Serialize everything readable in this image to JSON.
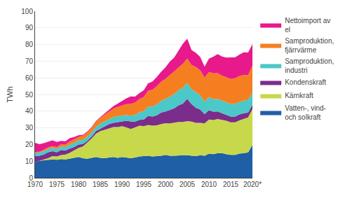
{
  "chart_data": {
    "type": "area",
    "stacked": true,
    "ylabel": "TWh",
    "x": [
      1970,
      1971,
      1972,
      1973,
      1974,
      1975,
      1976,
      1977,
      1978,
      1979,
      1980,
      1981,
      1982,
      1983,
      1984,
      1985,
      1986,
      1987,
      1988,
      1989,
      1990,
      1991,
      1992,
      1993,
      1994,
      1995,
      1996,
      1997,
      1998,
      1999,
      2000,
      2001,
      2002,
      2003,
      2004,
      2005,
      2006,
      2007,
      2008,
      2009,
      2010,
      2011,
      2012,
      2013,
      2014,
      2015,
      2016,
      2017,
      2018,
      2019,
      2020
    ],
    "series": [
      {
        "name": "Vatten-, vind-\noch solkraft",
        "color": "#1f5fa6",
        "values": [
          9.5,
          10.2,
          10.5,
          10.8,
          11.0,
          10.8,
          11.2,
          11.0,
          11.5,
          12.0,
          12.5,
          11.8,
          11.5,
          12.0,
          12.5,
          12.0,
          11.8,
          12.2,
          12.5,
          12.0,
          12.5,
          12.2,
          11.8,
          12.2,
          12.8,
          13.0,
          13.2,
          12.8,
          13.0,
          13.2,
          13.8,
          13.2,
          13.2,
          13.5,
          13.5,
          13.5,
          13.2,
          13.0,
          13.5,
          13.2,
          14.5,
          14.2,
          14.8,
          14.8,
          14.2,
          13.8,
          13.8,
          14.5,
          14.8,
          15.2,
          19.8
        ]
      },
      {
        "name": "Kärnkraft",
        "color": "#c8d84b",
        "values": [
          0.0,
          0.0,
          0.5,
          1.0,
          2.0,
          2.0,
          2.5,
          3.0,
          3.5,
          4.5,
          5.5,
          7.0,
          9.5,
          11.5,
          14.0,
          16.0,
          17.0,
          17.5,
          18.0,
          18.5,
          18.5,
          18.0,
          17.5,
          18.0,
          18.5,
          18.0,
          18.5,
          18.5,
          18.5,
          19.0,
          19.0,
          19.5,
          20.0,
          20.0,
          20.0,
          20.5,
          20.5,
          20.0,
          19.5,
          19.5,
          20.5,
          20.5,
          20.5,
          20.0,
          20.0,
          19.5,
          19.5,
          20.0,
          20.5,
          21.0,
          21.5
        ]
      },
      {
        "name": "Kondenskraft",
        "color": "#7b2d8b",
        "values": [
          3.5,
          3.0,
          3.0,
          3.5,
          3.0,
          2.5,
          3.0,
          2.5,
          2.5,
          2.0,
          2.0,
          1.5,
          1.2,
          1.2,
          1.5,
          1.5,
          2.0,
          2.5,
          2.5,
          3.0,
          3.0,
          4.0,
          4.5,
          3.5,
          3.5,
          4.0,
          5.5,
          5.5,
          6.0,
          7.0,
          7.0,
          8.0,
          8.5,
          10.0,
          11.0,
          13.5,
          10.5,
          9.0,
          8.0,
          5.5,
          5.5,
          5.0,
          4.5,
          4.0,
          3.5,
          3.5,
          3.5,
          3.5,
          3.5,
          3.0,
          2.5
        ]
      },
      {
        "name": "Samproduktion,\nindustri",
        "color": "#4bc8c8",
        "values": [
          2.0,
          2.0,
          2.0,
          2.0,
          2.0,
          2.0,
          2.0,
          2.0,
          2.5,
          2.5,
          2.5,
          2.5,
          2.5,
          2.5,
          2.5,
          3.0,
          3.0,
          3.0,
          3.5,
          3.5,
          3.5,
          3.5,
          3.5,
          4.0,
          4.5,
          5.0,
          5.5,
          6.0,
          6.5,
          7.0,
          7.5,
          8.0,
          8.5,
          9.0,
          9.5,
          9.5,
          9.0,
          9.5,
          8.5,
          7.5,
          8.0,
          7.5,
          7.5,
          7.5,
          7.5,
          7.5,
          7.5,
          7.5,
          7.5,
          7.5,
          7.5
        ]
      },
      {
        "name": "Samproduktion,\nfjärrvärme",
        "color": "#f57f20",
        "values": [
          0.5,
          0.5,
          0.8,
          1.0,
          1.0,
          1.2,
          1.5,
          1.5,
          1.8,
          2.0,
          2.0,
          2.5,
          2.5,
          2.8,
          3.0,
          3.5,
          4.0,
          4.5,
          5.0,
          5.5,
          6.0,
          6.5,
          7.0,
          7.5,
          8.0,
          8.5,
          9.5,
          10.0,
          11.0,
          11.5,
          12.0,
          13.0,
          13.5,
          14.0,
          14.5,
          14.5,
          14.5,
          15.0,
          15.0,
          14.5,
          15.0,
          15.5,
          15.5,
          15.0,
          15.0,
          15.0,
          15.5,
          15.5,
          15.5,
          15.0,
          16.0
        ]
      },
      {
        "name": "Nettoimport av\nel",
        "color": "#e8198b",
        "values": [
          5.5,
          4.5,
          4.0,
          3.5,
          3.5,
          3.0,
          2.0,
          2.0,
          2.0,
          1.5,
          1.0,
          0.5,
          0.5,
          0.5,
          0.5,
          0.5,
          1.0,
          1.0,
          1.5,
          2.0,
          2.5,
          3.5,
          4.5,
          3.5,
          3.5,
          4.0,
          4.5,
          5.0,
          5.5,
          6.0,
          7.0,
          8.0,
          8.5,
          10.0,
          12.0,
          12.0,
          9.0,
          8.5,
          8.0,
          6.5,
          8.0,
          10.0,
          11.5,
          11.5,
          12.0,
          13.0,
          12.5,
          13.0,
          13.5,
          13.5,
          13.0
        ]
      }
    ],
    "xlim": [
      1970,
      2020
    ],
    "xticks": [
      1970,
      1975,
      1980,
      1985,
      1990,
      1995,
      2000,
      2005,
      2010,
      2015,
      {
        "value": 2020,
        "label": "2020*"
      }
    ],
    "ylim": [
      0,
      100
    ],
    "yticks": [
      0,
      10,
      20,
      30,
      40,
      50,
      60,
      70,
      80,
      90,
      100
    ],
    "grid": true,
    "legend": "right"
  }
}
